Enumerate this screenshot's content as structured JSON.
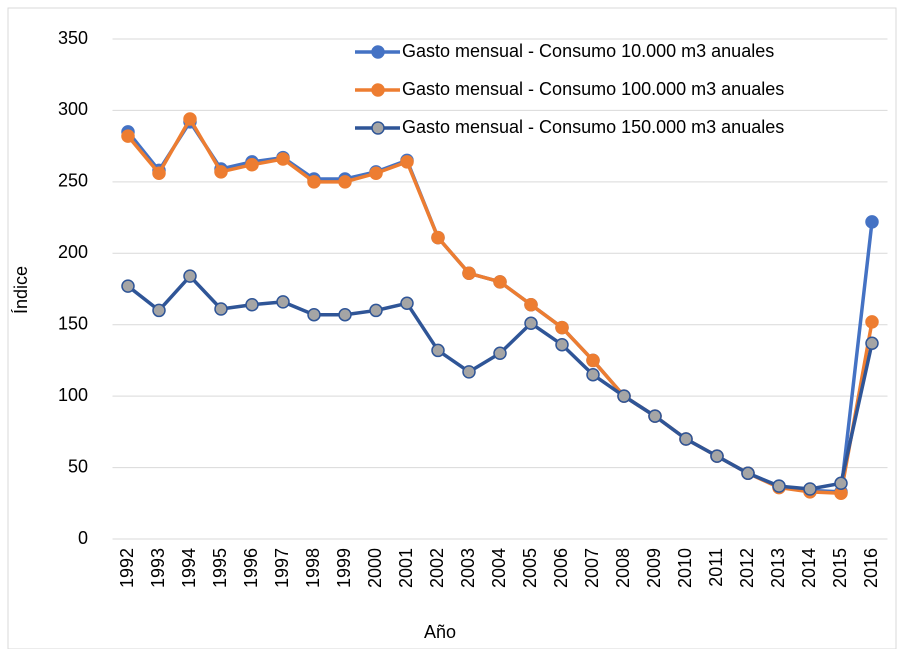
{
  "chart_data": {
    "type": "line",
    "x_label": "Año",
    "y_label": "Índice",
    "categories": [
      "1992",
      "1993",
      "1994",
      "1995",
      "1996",
      "1997",
      "1998",
      "1999",
      "2000",
      "2001",
      "2002",
      "2003",
      "2004",
      "2005",
      "2006",
      "2007",
      "2008",
      "2009",
      "2010",
      "2011",
      "2012",
      "2013",
      "2014",
      "2015",
      "2016"
    ],
    "series": [
      {
        "name": "Gasto mensual - Consumo 10.000 m3 anuales",
        "color": "#4472c4",
        "marker_fill": "#4472c4",
        "values": [
          285,
          258,
          292,
          259,
          264,
          267,
          252,
          252,
          257,
          265,
          211,
          186,
          180,
          164,
          148,
          125,
          100,
          86,
          70,
          58,
          46,
          37,
          34,
          33,
          222
        ]
      },
      {
        "name": "Gasto mensual - Consumo 100.000 m3 anuales",
        "color": "#ed7d31",
        "marker_fill": "#ed7d31",
        "values": [
          282,
          256,
          294,
          257,
          262,
          266,
          250,
          250,
          256,
          264,
          211,
          186,
          180,
          164,
          148,
          125,
          100,
          86,
          70,
          58,
          46,
          36,
          33,
          32,
          152
        ]
      },
      {
        "name": "Gasto mensual - Consumo 150.000 m3 anuales",
        "color": "#2f5597",
        "marker_fill": "#a5a5a5",
        "values": [
          177,
          160,
          184,
          161,
          164,
          166,
          157,
          157,
          160,
          165,
          132,
          117,
          130,
          151,
          136,
          115,
          100,
          86,
          70,
          58,
          46,
          37,
          35,
          39,
          137
        ]
      }
    ],
    "ylim": [
      0,
      350
    ],
    "yticks": [
      0,
      50,
      100,
      150,
      200,
      250,
      300,
      350
    ],
    "grid": true,
    "legend": "top-right"
  }
}
